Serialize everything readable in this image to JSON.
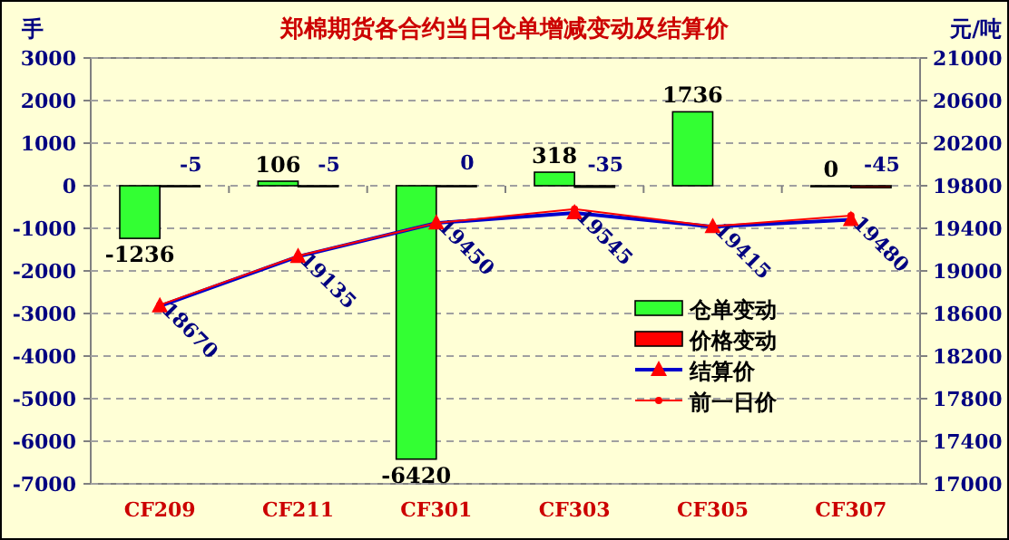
{
  "chart_data": {
    "type": "bar",
    "title": "郑棉期货各合约当日仓单增减变动及结算价",
    "ylabel": "手",
    "y2label": "元/吨",
    "categories": [
      "CF209",
      "CF211",
      "CF301",
      "CF303",
      "CF305",
      "CF307"
    ],
    "series": [
      {
        "name": "仓单变动",
        "color": "#33ff33",
        "values": [
          -1236,
          106,
          -6420,
          318,
          1736,
          0
        ],
        "value_labels": [
          "-1236",
          "106",
          "-6420",
          "318",
          "1736",
          "0"
        ]
      },
      {
        "name": "价格变动",
        "color": "#ff0000",
        "values": [
          -5,
          -5,
          0,
          -35,
          null,
          -45
        ],
        "value_labels": [
          "-5",
          "-5",
          "0",
          "-35",
          null,
          "-45"
        ]
      },
      {
        "name": "结算价",
        "type": "line",
        "axis": "y2",
        "color": "#0000cc",
        "marker": "triangle",
        "values": [
          18670,
          19135,
          19450,
          19545,
          19415,
          19480
        ],
        "value_labels": [
          "18670",
          "19135",
          "19450",
          "19545",
          "19415",
          "19480"
        ]
      },
      {
        "name": "前一日价",
        "type": "line",
        "axis": "y2",
        "color": "#ff0000",
        "marker": "circle",
        "values": [
          18680,
          19140,
          19450,
          19580,
          19420,
          19520
        ]
      }
    ],
    "ylim": [
      -7000,
      3000
    ],
    "yticks": [
      -7000,
      -6000,
      -5000,
      -4000,
      -3000,
      -2000,
      -1000,
      0,
      1000,
      2000,
      3000
    ],
    "y2lim": [
      17000,
      21000
    ],
    "y2ticks": [
      17000,
      17400,
      17800,
      18200,
      18600,
      19000,
      19400,
      19800,
      20200,
      20600,
      21000
    ],
    "grid": "y",
    "legend": "right"
  }
}
